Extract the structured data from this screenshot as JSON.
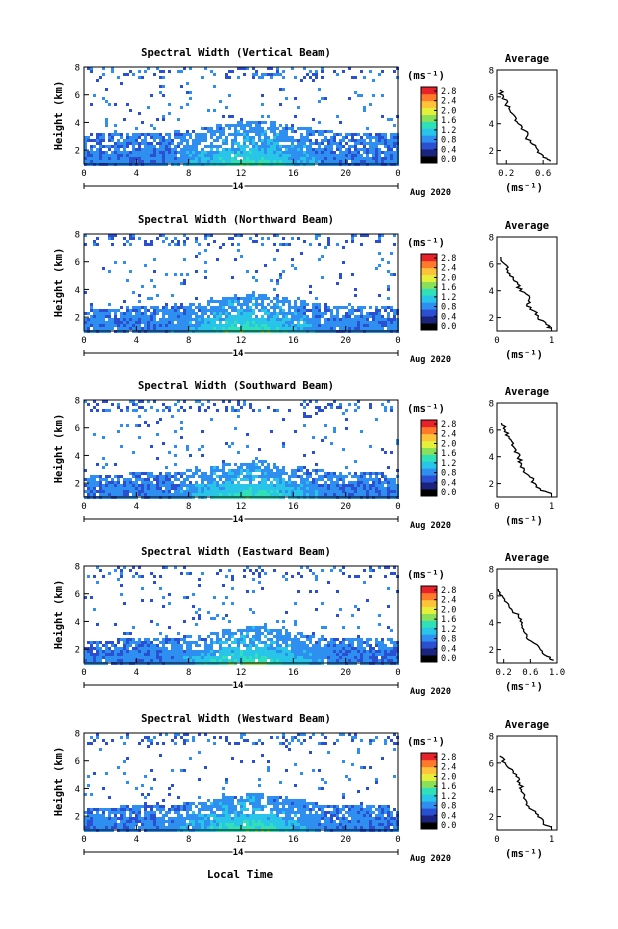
{
  "figure": {
    "colorbar_ticks": [
      "0.0",
      "0.4",
      "0.8",
      "1.2",
      "1.6",
      "2.0",
      "2.4",
      "2.8"
    ],
    "colorbar_unit": "(ms⁻¹)",
    "xlabel": "Local Time",
    "colors": [
      "#000000",
      "#1a237e",
      "#2a4fd0",
      "#2f8ff0",
      "#29c5e8",
      "#2fe0b8",
      "#8be05a",
      "#e6f03a",
      "#ffc23a",
      "#ff7a2a",
      "#e8222a"
    ]
  },
  "chart_data": [
    {
      "type": "heatmap",
      "title": "Spectral Width (Vertical Beam)",
      "ylabel": "Height (km)",
      "xlim": [
        0,
        24
      ],
      "ylim": [
        1,
        8
      ],
      "x_ticks": [
        "0",
        "4",
        "8",
        "12",
        "16",
        "20",
        "0"
      ],
      "date_labels": [
        "14",
        "Aug 2020"
      ],
      "colorbar_range": [
        0,
        2.8
      ],
      "avg_title": "Average",
      "avg_xlabel": "(ms⁻¹)",
      "avg_xlim": [
        0.1,
        0.75
      ],
      "avg_x_ticks": [
        "0.2",
        "0.6"
      ],
      "avg_y_ticks": [
        "2",
        "4",
        "6",
        "8"
      ],
      "avg_profile": {
        "height": [
          1.2,
          1.5,
          2.0,
          2.5,
          3.0,
          3.5,
          4.0,
          4.5,
          5.0,
          5.5,
          6.0,
          6.5
        ],
        "value": [
          0.68,
          0.6,
          0.55,
          0.48,
          0.42,
          0.4,
          0.33,
          0.3,
          0.24,
          0.2,
          0.17,
          0.13
        ]
      }
    },
    {
      "type": "heatmap",
      "title": "Spectral Width (Northward Beam)",
      "ylabel": "Height (km)",
      "xlim": [
        0,
        24
      ],
      "ylim": [
        1,
        8
      ],
      "x_ticks": [
        "0",
        "4",
        "8",
        "12",
        "16",
        "20",
        "0"
      ],
      "date_labels": [
        "14",
        "Aug 2020"
      ],
      "colorbar_range": [
        0,
        2.8
      ],
      "avg_title": "Average",
      "avg_xlabel": "(ms⁻¹)",
      "avg_xlim": [
        0,
        1.1
      ],
      "avg_x_ticks": [
        "0",
        "1"
      ],
      "avg_y_ticks": [
        "2",
        "4",
        "6",
        "8"
      ],
      "avg_profile": {
        "height": [
          1.2,
          1.5,
          2.0,
          2.5,
          3.0,
          3.5,
          4.0,
          4.5,
          5.0,
          5.5,
          6.0,
          6.5
        ],
        "value": [
          1.0,
          0.9,
          0.75,
          0.68,
          0.55,
          0.6,
          0.42,
          0.38,
          0.3,
          0.2,
          0.14,
          0.07
        ]
      }
    },
    {
      "type": "heatmap",
      "title": "Spectral Width (Southward Beam)",
      "ylabel": "Height (km)",
      "xlim": [
        0,
        24
      ],
      "ylim": [
        1,
        8
      ],
      "x_ticks": [
        "0",
        "4",
        "8",
        "12",
        "16",
        "20",
        "0"
      ],
      "date_labels": [
        "14",
        "Aug 2020"
      ],
      "colorbar_range": [
        0,
        2.8
      ],
      "avg_title": "Average",
      "avg_xlabel": "(ms⁻¹)",
      "avg_xlim": [
        0,
        1.1
      ],
      "avg_x_ticks": [
        "0",
        "1"
      ],
      "avg_y_ticks": [
        "2",
        "4",
        "6",
        "8"
      ],
      "avg_profile": {
        "height": [
          1.2,
          1.5,
          2.0,
          2.5,
          3.0,
          3.5,
          4.0,
          4.5,
          5.0,
          5.5,
          6.0,
          6.5
        ],
        "value": [
          1.0,
          0.8,
          0.7,
          0.6,
          0.5,
          0.45,
          0.4,
          0.35,
          0.3,
          0.22,
          0.15,
          0.08
        ]
      }
    },
    {
      "type": "heatmap",
      "title": "Spectral Width (Eastward Beam)",
      "ylabel": "Height (km)",
      "xlim": [
        0,
        24
      ],
      "ylim": [
        1,
        8
      ],
      "x_ticks": [
        "0",
        "4",
        "8",
        "12",
        "16",
        "20",
        "0"
      ],
      "date_labels": [
        "14",
        "Aug 2020"
      ],
      "colorbar_range": [
        0,
        2.8
      ],
      "avg_title": "Average",
      "avg_xlabel": "(ms⁻¹)",
      "avg_xlim": [
        0.1,
        1.0
      ],
      "avg_x_ticks": [
        "0.2",
        "0.6",
        "1.0"
      ],
      "avg_y_ticks": [
        "2",
        "4",
        "6",
        "8"
      ],
      "avg_profile": {
        "height": [
          1.2,
          1.5,
          2.0,
          2.5,
          3.0,
          3.5,
          4.0,
          4.5,
          5.0,
          5.5,
          6.0,
          6.5
        ],
        "value": [
          0.95,
          0.85,
          0.75,
          0.65,
          0.55,
          0.5,
          0.48,
          0.42,
          0.32,
          0.25,
          0.18,
          0.12
        ]
      }
    },
    {
      "type": "heatmap",
      "title": "Spectral Width (Westward Beam)",
      "ylabel": "Height (km)",
      "xlim": [
        0,
        24
      ],
      "ylim": [
        1,
        8
      ],
      "x_ticks": [
        "0",
        "4",
        "8",
        "12",
        "16",
        "20",
        "0"
      ],
      "date_labels": [
        "14",
        "Aug 2020"
      ],
      "colorbar_range": [
        0,
        2.8
      ],
      "avg_title": "Average",
      "avg_xlabel": "(ms⁻¹)",
      "avg_xlim": [
        0,
        1.1
      ],
      "avg_x_ticks": [
        "0",
        "1"
      ],
      "avg_y_ticks": [
        "2",
        "4",
        "6",
        "8"
      ],
      "avg_profile": {
        "height": [
          1.2,
          1.5,
          2.0,
          2.5,
          3.0,
          3.5,
          4.0,
          4.5,
          5.0,
          5.5,
          6.0,
          6.5
        ],
        "value": [
          1.0,
          0.85,
          0.75,
          0.65,
          0.55,
          0.5,
          0.45,
          0.42,
          0.35,
          0.28,
          0.15,
          0.05
        ]
      }
    }
  ]
}
